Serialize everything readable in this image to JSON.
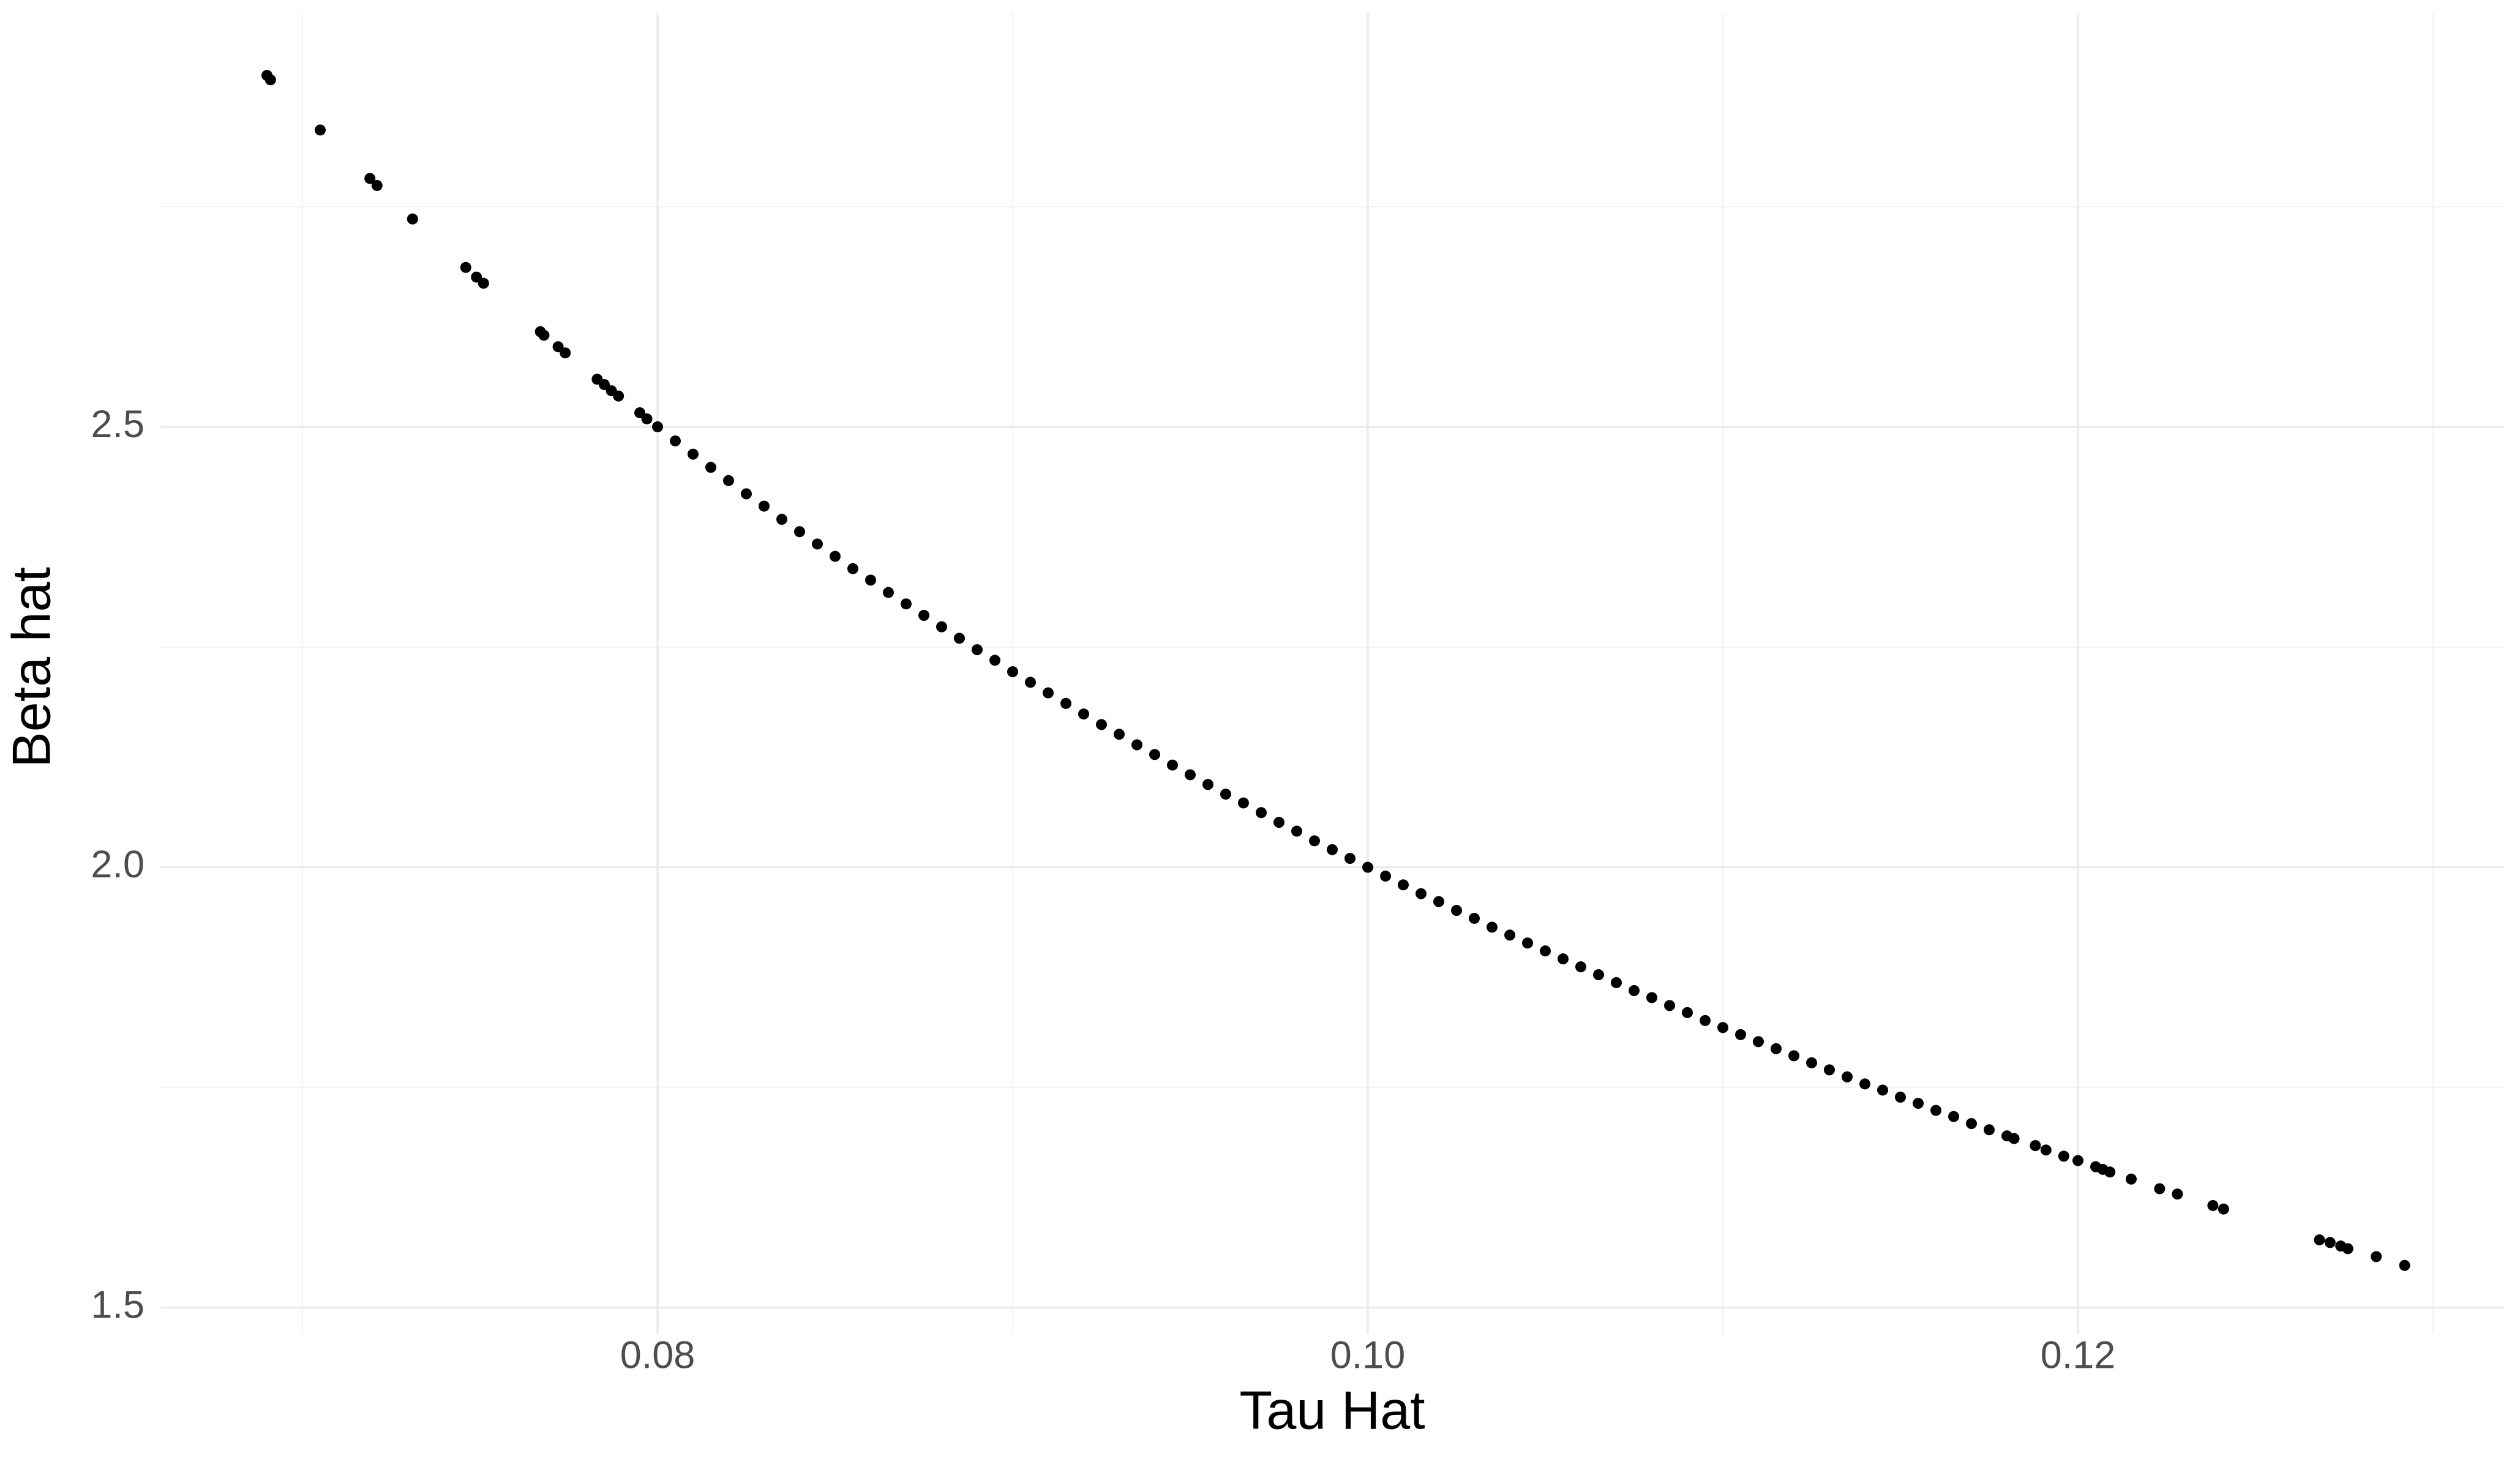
{
  "chart_data": {
    "type": "scatter",
    "x_label": "Tau Hat",
    "y_label": "Beta hat",
    "xlim": [
      0.066,
      0.132
    ],
    "ylim": [
      1.47,
      2.97
    ],
    "xticks": [
      {
        "value": 0.08,
        "label": "0.08"
      },
      {
        "value": 0.1,
        "label": "0.10"
      },
      {
        "value": 0.12,
        "label": "0.12"
      }
    ],
    "yticks": [
      1.5,
      {
        "value": 2,
        "label": "2.0"
      },
      2.5
    ],
    "xminor": [
      0.07,
      0.09,
      0.11,
      0.13
    ],
    "yminor": [
      1.75,
      2.25,
      2.75
    ],
    "grid": true,
    "color": "#000000",
    "x": [
      0.069,
      0.0691,
      0.0705,
      0.0719,
      0.0721,
      0.0731,
      0.0746,
      0.0749,
      0.0751,
      0.0767,
      0.0768,
      0.0772,
      0.0774,
      0.0783,
      0.0785,
      0.0787,
      0.0789,
      0.0795,
      0.0797,
      0.08,
      0.0805,
      0.081,
      0.0815,
      0.082,
      0.0825,
      0.083,
      0.0835,
      0.084,
      0.0845,
      0.085,
      0.0855,
      0.086,
      0.0865,
      0.087,
      0.0875,
      0.088,
      0.0885,
      0.089,
      0.0895,
      0.09,
      0.0905,
      0.091,
      0.0915,
      0.092,
      0.0925,
      0.093,
      0.0935,
      0.094,
      0.0945,
      0.095,
      0.0955,
      0.096,
      0.0965,
      0.097,
      0.0975,
      0.098,
      0.0985,
      0.099,
      0.0995,
      0.1,
      0.1005,
      0.101,
      0.1015,
      0.102,
      0.1025,
      0.103,
      0.1035,
      0.104,
      0.1045,
      0.105,
      0.1055,
      0.106,
      0.1065,
      0.107,
      0.1075,
      0.108,
      0.1085,
      0.109,
      0.1095,
      0.11,
      0.1105,
      0.111,
      0.1115,
      0.112,
      0.1125,
      0.113,
      0.1135,
      0.114,
      0.1145,
      0.115,
      0.1155,
      0.116,
      0.1165,
      0.117,
      0.1175,
      0.118,
      0.1182,
      0.1188,
      0.1191,
      0.1196,
      0.12,
      0.1205,
      0.1207,
      0.1209,
      0.1215,
      0.1223,
      0.1228,
      0.1238,
      0.1241,
      0.1268,
      0.1271,
      0.1274,
      0.1276,
      0.1284,
      0.1292
    ],
    "values": [
      2.899,
      2.894,
      2.837,
      2.782,
      2.774,
      2.736,
      2.681,
      2.67,
      2.663,
      2.608,
      2.604,
      2.591,
      2.584,
      2.554,
      2.548,
      2.541,
      2.535,
      2.516,
      2.509,
      2.5,
      2.484,
      2.469,
      2.454,
      2.439,
      2.424,
      2.41,
      2.395,
      2.381,
      2.367,
      2.353,
      2.339,
      2.326,
      2.312,
      2.299,
      2.286,
      2.273,
      2.26,
      2.247,
      2.235,
      2.222,
      2.21,
      2.198,
      2.186,
      2.174,
      2.162,
      2.151,
      2.139,
      2.128,
      2.116,
      2.105,
      2.094,
      2.083,
      2.073,
      2.062,
      2.051,
      2.041,
      2.03,
      2.02,
      2.01,
      2.0,
      1.99,
      1.98,
      1.97,
      1.961,
      1.951,
      1.942,
      1.932,
      1.923,
      1.914,
      1.905,
      1.896,
      1.887,
      1.878,
      1.869,
      1.86,
      1.852,
      1.843,
      1.835,
      1.826,
      1.818,
      1.81,
      1.802,
      1.794,
      1.786,
      1.778,
      1.77,
      1.762,
      1.754,
      1.747,
      1.739,
      1.732,
      1.724,
      1.717,
      1.709,
      1.702,
      1.695,
      1.692,
      1.684,
      1.679,
      1.672,
      1.667,
      1.66,
      1.657,
      1.654,
      1.646,
      1.635,
      1.629,
      1.616,
      1.612,
      1.577,
      1.574,
      1.57,
      1.567,
      1.558,
      1.548
    ]
  }
}
